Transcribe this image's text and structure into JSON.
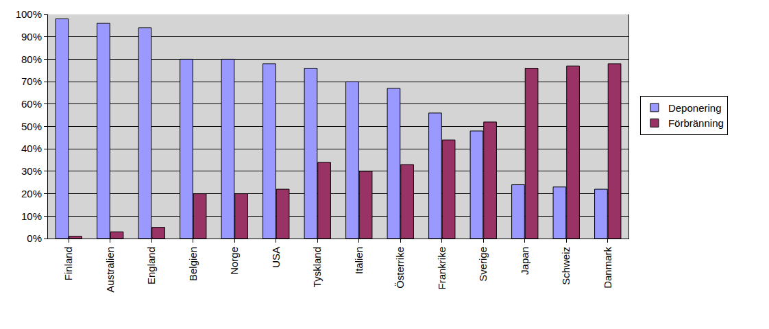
{
  "chart_data": {
    "type": "bar",
    "categories": [
      "Finland",
      "Australien",
      "England",
      "Belgien",
      "Norge",
      "USA",
      "Tyskland",
      "Italien",
      "Österrike",
      "Frankrike",
      "Sverige",
      "Japan",
      "Schweiz",
      "Danmark"
    ],
    "series": [
      {
        "name": "Deponering",
        "color": "#9999ff",
        "values": [
          98,
          96,
          94,
          80,
          80,
          78,
          76,
          70,
          67,
          56,
          48,
          24,
          23,
          22
        ]
      },
      {
        "name": "Förbränning",
        "color": "#993366",
        "values": [
          1,
          3,
          5,
          20,
          20,
          22,
          34,
          30,
          33,
          44,
          52,
          76,
          77,
          78
        ]
      }
    ],
    "ylim": [
      0,
      100
    ],
    "yticks": [
      {
        "value": 0,
        "label": "0%"
      },
      {
        "value": 10,
        "label": "10%"
      },
      {
        "value": 20,
        "label": "20%"
      },
      {
        "value": 30,
        "label": "30%"
      },
      {
        "value": 40,
        "label": "40%"
      },
      {
        "value": 50,
        "label": "50%"
      },
      {
        "value": 60,
        "label": "60%"
      },
      {
        "value": 70,
        "label": "70%"
      },
      {
        "value": 80,
        "label": "80%"
      },
      {
        "value": 90,
        "label": "90%"
      },
      {
        "value": 100,
        "label": "100%"
      }
    ],
    "grid": true,
    "legend": "right"
  }
}
